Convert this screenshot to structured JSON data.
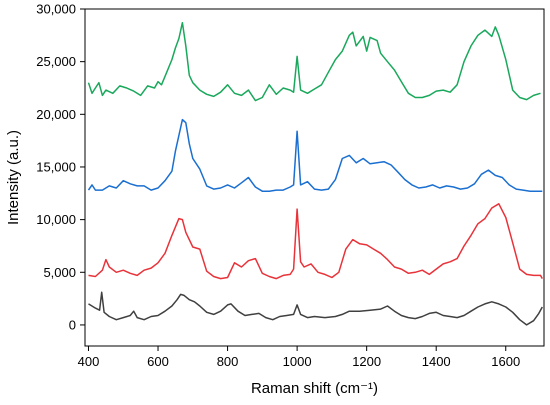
{
  "chart_data": {
    "type": "line",
    "xlabel": "Raman shift (cm⁻¹)",
    "ylabel": "Intensity (a.u.)",
    "xlim": [
      390,
      1710
    ],
    "ylim": [
      -2000,
      30000
    ],
    "xticks": [
      400,
      600,
      800,
      1000,
      1200,
      1400,
      1600
    ],
    "xtick_labels": [
      "400",
      "600",
      "800",
      "1000",
      "1200",
      "1400",
      "1600"
    ],
    "yticks": [
      0,
      5000,
      10000,
      15000,
      20000,
      25000,
      30000
    ],
    "ytick_labels": [
      "0",
      "5,000",
      "10,000",
      "15,000",
      "20,000",
      "25,000",
      "30,000"
    ],
    "grid": false,
    "legend": false,
    "series": [
      {
        "color": "#404040",
        "x": [
          400,
          420,
          432,
          438,
          445,
          460,
          480,
          500,
          520,
          530,
          540,
          560,
          580,
          600,
          620,
          640,
          655,
          665,
          675,
          690,
          705,
          720,
          740,
          760,
          780,
          800,
          810,
          830,
          850,
          870,
          890,
          910,
          930,
          950,
          970,
          990,
          1000,
          1010,
          1030,
          1050,
          1080,
          1110,
          1130,
          1150,
          1180,
          1210,
          1240,
          1260,
          1280,
          1300,
          1320,
          1340,
          1360,
          1380,
          1400,
          1420,
          1440,
          1460,
          1480,
          1500,
          1520,
          1540,
          1560,
          1580,
          1600,
          1620,
          1640,
          1660,
          1680,
          1695,
          1705
        ],
        "values": [
          2000,
          1600,
          1400,
          3100,
          1200,
          800,
          500,
          700,
          900,
          1300,
          700,
          500,
          800,
          900,
          1300,
          1800,
          2400,
          2900,
          2800,
          2400,
          2200,
          1800,
          1200,
          1000,
          1300,
          1900,
          2000,
          1300,
          900,
          1000,
          1100,
          700,
          500,
          800,
          900,
          1000,
          1900,
          1000,
          700,
          800,
          700,
          800,
          1000,
          1300,
          1300,
          1400,
          1500,
          1800,
          1300,
          900,
          700,
          600,
          800,
          1100,
          1200,
          900,
          800,
          700,
          900,
          1300,
          1700,
          2000,
          2200,
          2000,
          1700,
          1200,
          500,
          0,
          400,
          1100,
          1700
        ]
      },
      {
        "color": "#e8333a",
        "x": [
          400,
          420,
          440,
          450,
          460,
          480,
          500,
          520,
          540,
          560,
          580,
          600,
          620,
          640,
          660,
          670,
          680,
          700,
          720,
          740,
          760,
          780,
          800,
          820,
          840,
          860,
          880,
          900,
          920,
          940,
          960,
          980,
          990,
          1000,
          1010,
          1020,
          1040,
          1060,
          1080,
          1100,
          1120,
          1140,
          1160,
          1180,
          1200,
          1220,
          1240,
          1260,
          1280,
          1300,
          1320,
          1340,
          1360,
          1380,
          1400,
          1420,
          1440,
          1460,
          1480,
          1500,
          1520,
          1540,
          1560,
          1580,
          1600,
          1620,
          1640,
          1660,
          1680,
          1700,
          1705
        ],
        "values": [
          4700,
          4600,
          5200,
          6200,
          5500,
          5000,
          5200,
          4900,
          4700,
          5200,
          5400,
          5900,
          6800,
          8500,
          10100,
          10000,
          8800,
          7400,
          7200,
          5100,
          4600,
          4400,
          4500,
          5900,
          5500,
          6100,
          6300,
          4900,
          4600,
          4400,
          4700,
          4800,
          5300,
          11000,
          6000,
          5500,
          5800,
          5000,
          4800,
          4500,
          5000,
          7200,
          8100,
          7700,
          7600,
          7200,
          6800,
          6200,
          5500,
          5300,
          4900,
          5000,
          5200,
          4800,
          5300,
          5800,
          6000,
          6300,
          7500,
          8500,
          9600,
          10100,
          11100,
          11500,
          10200,
          7800,
          5300,
          4800,
          4700,
          4700,
          4400
        ]
      },
      {
        "color": "#1a6fd1",
        "x": [
          400,
          410,
          420,
          440,
          460,
          480,
          500,
          520,
          540,
          560,
          580,
          600,
          620,
          640,
          650,
          660,
          670,
          680,
          690,
          700,
          720,
          740,
          760,
          780,
          800,
          820,
          840,
          860,
          880,
          900,
          920,
          940,
          960,
          980,
          990,
          1000,
          1010,
          1030,
          1050,
          1070,
          1090,
          1110,
          1130,
          1150,
          1170,
          1190,
          1210,
          1230,
          1250,
          1270,
          1290,
          1310,
          1330,
          1350,
          1370,
          1390,
          1410,
          1430,
          1450,
          1470,
          1490,
          1510,
          1530,
          1550,
          1570,
          1590,
          1610,
          1630,
          1650,
          1670,
          1690,
          1705
        ],
        "values": [
          12800,
          13300,
          12800,
          12800,
          13200,
          13000,
          13700,
          13400,
          13200,
          13200,
          12800,
          13000,
          13700,
          14600,
          16500,
          18000,
          19500,
          19200,
          17200,
          15800,
          14800,
          13200,
          12900,
          13000,
          13300,
          13000,
          13500,
          14000,
          13100,
          12700,
          12700,
          12800,
          12800,
          13100,
          13300,
          18400,
          13300,
          13600,
          12900,
          12800,
          12900,
          13800,
          15800,
          16100,
          15400,
          15800,
          15300,
          15400,
          15500,
          15200,
          14500,
          13800,
          13300,
          13000,
          13100,
          13300,
          13000,
          13200,
          13100,
          12900,
          13000,
          13400,
          14300,
          14700,
          14200,
          14000,
          13300,
          12900,
          12800,
          12700,
          12700,
          12700
        ]
      },
      {
        "color": "#1aa85c",
        "x": [
          400,
          410,
          420,
          430,
          440,
          450,
          470,
          490,
          510,
          530,
          550,
          570,
          590,
          600,
          610,
          620,
          640,
          650,
          660,
          670,
          680,
          690,
          700,
          720,
          740,
          760,
          780,
          800,
          820,
          840,
          860,
          880,
          900,
          920,
          940,
          960,
          980,
          990,
          1000,
          1010,
          1030,
          1050,
          1070,
          1090,
          1110,
          1130,
          1150,
          1160,
          1170,
          1190,
          1200,
          1210,
          1230,
          1240,
          1260,
          1280,
          1300,
          1320,
          1340,
          1360,
          1380,
          1400,
          1420,
          1440,
          1460,
          1480,
          1500,
          1520,
          1540,
          1560,
          1570,
          1580,
          1600,
          1620,
          1640,
          1660,
          1680,
          1700
        ],
        "values": [
          23000,
          22000,
          22500,
          23000,
          21800,
          22300,
          22000,
          22700,
          22500,
          22200,
          21800,
          22700,
          22500,
          23100,
          22800,
          23600,
          25200,
          26300,
          27200,
          28700,
          26500,
          23700,
          23000,
          22300,
          21900,
          21700,
          22100,
          22800,
          22000,
          21800,
          22300,
          21300,
          21600,
          22800,
          21900,
          22500,
          22300,
          22100,
          25500,
          22300,
          22000,
          22400,
          22800,
          24000,
          25200,
          26000,
          27500,
          27800,
          26500,
          27400,
          26000,
          27300,
          27000,
          25800,
          25000,
          24200,
          23100,
          22000,
          21600,
          21600,
          21800,
          22200,
          22300,
          22100,
          22800,
          25000,
          26500,
          27500,
          28000,
          27400,
          28300,
          27500,
          25200,
          22300,
          21600,
          21400,
          21800,
          22000
        ]
      }
    ]
  }
}
